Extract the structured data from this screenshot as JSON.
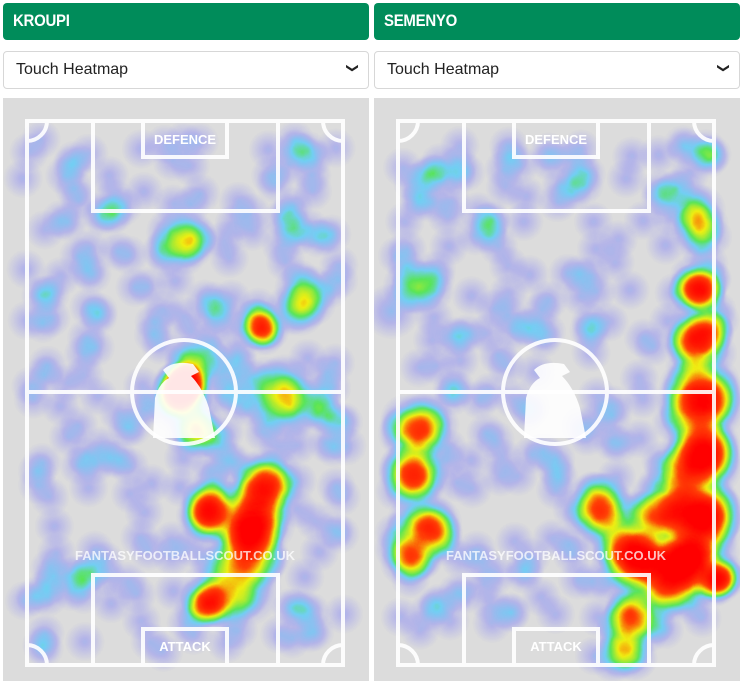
{
  "panels": [
    {
      "player": "KROUPI",
      "view_select": "Touch Heatmap",
      "labels": {
        "top": "DEFENCE",
        "bottom": "ATTACK",
        "watermark": "FANTASYFOOTBALLSCOUT.CO.UK"
      }
    },
    {
      "player": "SEMENYO",
      "view_select": "Touch Heatmap",
      "labels": {
        "top": "DEFENCE",
        "bottom": "ATTACK",
        "watermark": "FANTASYFOOTBALLSCOUT.CO.UK"
      }
    }
  ],
  "colors": {
    "header": "#008c5a",
    "pitch": "#dcdcdc",
    "lines": "#ffffff"
  },
  "icons": {
    "select": "chevron-down-icon",
    "center": "mascot-silhouette-icon"
  }
}
